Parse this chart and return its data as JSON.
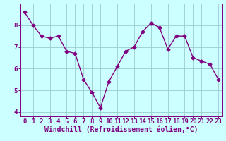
{
  "x": [
    0,
    1,
    2,
    3,
    4,
    5,
    6,
    7,
    8,
    9,
    10,
    11,
    12,
    13,
    14,
    15,
    16,
    17,
    18,
    19,
    20,
    21,
    22,
    23
  ],
  "y": [
    8.6,
    8.0,
    7.5,
    7.4,
    7.5,
    6.8,
    6.7,
    5.5,
    4.9,
    4.2,
    5.4,
    6.1,
    6.8,
    7.0,
    7.7,
    8.1,
    7.9,
    6.9,
    7.5,
    7.5,
    6.5,
    6.35,
    6.2,
    5.5
  ],
  "line_color": "#800080",
  "marker": "D",
  "marker_size": 2.5,
  "xlabel": "Windchill (Refroidissement éolien,°C)",
  "ylim": [
    3.8,
    9.0
  ],
  "xlim": [
    -0.5,
    23.5
  ],
  "yticks": [
    4,
    5,
    6,
    7,
    8
  ],
  "xticks": [
    0,
    1,
    2,
    3,
    4,
    5,
    6,
    7,
    8,
    9,
    10,
    11,
    12,
    13,
    14,
    15,
    16,
    17,
    18,
    19,
    20,
    21,
    22,
    23
  ],
  "bg_color": "#ccffff",
  "grid_color": "#99cccc",
  "font_color": "#800080",
  "line_width": 1.0,
  "xlabel_fontsize": 7.0,
  "tick_fontsize": 6.5
}
